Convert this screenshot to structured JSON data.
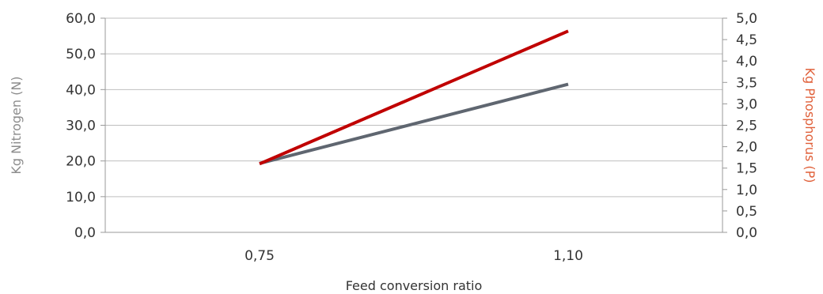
{
  "chart_data": {
    "type": "line",
    "title": "",
    "xlabel": "Feed conversion ratio",
    "ylabel": "Kg Nitrogen (N)",
    "y2label": "Kg Phosphorus (P)",
    "categories": [
      "0,75",
      "1,10"
    ],
    "x": [
      0.75,
      1.1
    ],
    "xlim": [
      0.575,
      1.275
    ],
    "ylim": [
      0,
      60
    ],
    "y2lim": [
      0,
      5
    ],
    "yticks": [
      "0,0",
      "10,0",
      "20,0",
      "30,0",
      "40,0",
      "50,0",
      "60,0"
    ],
    "y2ticks": [
      "0,0",
      "0,5",
      "1,0",
      "1,5",
      "2,0",
      "2,5",
      "3,0",
      "3,5",
      "4,0",
      "4,5",
      "5,0"
    ],
    "grid": true,
    "legend": "none",
    "series": [
      {
        "axis": "left",
        "color": "#5f6670",
        "values": [
          19.3,
          41.5
        ]
      },
      {
        "axis": "right",
        "color": "#c00000",
        "values": [
          1.6,
          4.7
        ]
      }
    ],
    "colors": {
      "grid": "#bfbfbf",
      "axis": "#999999",
      "left_title": "#8c8c8c",
      "right_title": "#e0603a",
      "tick_text": "#333333"
    }
  }
}
